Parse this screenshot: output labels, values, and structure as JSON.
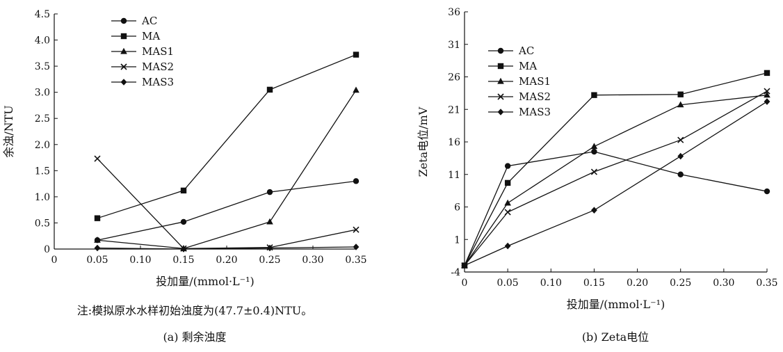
{
  "chart_data": [
    {
      "type": "line",
      "x": [
        0.05,
        0.15,
        0.25,
        0.35
      ],
      "xticks": [
        "0",
        "0.05",
        "0.10",
        "0.15",
        "0.20",
        "0.25",
        "0.30",
        "0.35"
      ],
      "xlim": [
        0,
        0.35
      ],
      "yticks": [
        "0",
        "0.5",
        "1.0",
        "1.5",
        "2.0",
        "2.5",
        "3.0",
        "3.5",
        "4.0",
        "4.5"
      ],
      "ylim": [
        0,
        4.5
      ],
      "xlabel": "投加量/(mmol·L⁻¹)",
      "ylabel": "余浊/NTU",
      "note": "注:模拟原水水样初始浊度为(47.7±0.4)NTU。",
      "caption": "(a) 剩余浊度",
      "legend_position": "top-left",
      "grid": false,
      "series": [
        {
          "name": "AC",
          "marker": "circle",
          "values": [
            0.17,
            0.52,
            1.09,
            1.3
          ]
        },
        {
          "name": "MA",
          "marker": "square",
          "values": [
            0.59,
            1.12,
            3.05,
            3.72
          ]
        },
        {
          "name": "MAS1",
          "marker": "triangle",
          "values": [
            0.17,
            0.01,
            0.52,
            3.04
          ]
        },
        {
          "name": "MAS2",
          "marker": "x",
          "values": [
            1.73,
            0.01,
            0.03,
            0.37
          ]
        },
        {
          "name": "MAS3",
          "marker": "diamond",
          "values": [
            0.02,
            0.0,
            0.02,
            0.04
          ]
        }
      ]
    },
    {
      "type": "line",
      "x": [
        0,
        0.05,
        0.15,
        0.25,
        0.35
      ],
      "xticks": [
        "0",
        "0.05",
        "0.10",
        "0.15",
        "0.20",
        "0.25",
        "0.30",
        "0.35"
      ],
      "xlim": [
        0,
        0.35
      ],
      "yticks": [
        "-4",
        "1",
        "6",
        "11",
        "16",
        "21",
        "26",
        "31",
        "36"
      ],
      "ylim": [
        -4,
        36
      ],
      "xlabel": "投加量/(mmol·L⁻¹)",
      "ylabel": "Zeta电位/mV",
      "caption": "(b) Zeta电位",
      "legend_position": "top-left",
      "grid": false,
      "series": [
        {
          "name": "AC",
          "marker": "circle",
          "values": [
            -3.0,
            12.3,
            14.5,
            11.0,
            8.4
          ]
        },
        {
          "name": "MA",
          "marker": "square",
          "values": [
            -3.0,
            9.7,
            23.2,
            23.3,
            26.6
          ]
        },
        {
          "name": "MAS1",
          "marker": "triangle",
          "values": [
            -3.0,
            6.6,
            15.3,
            21.7,
            23.2
          ]
        },
        {
          "name": "MAS2",
          "marker": "x",
          "values": [
            -3.0,
            5.2,
            11.4,
            16.3,
            23.8
          ]
        },
        {
          "name": "MAS3",
          "marker": "diamond",
          "values": [
            -3.0,
            0.0,
            5.5,
            13.8,
            22.2
          ]
        }
      ]
    }
  ]
}
